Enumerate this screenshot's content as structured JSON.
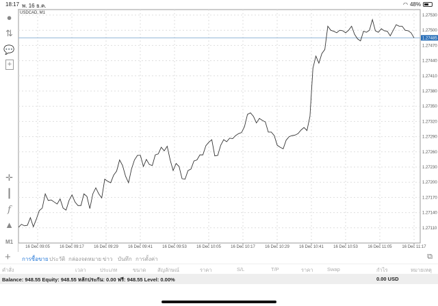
{
  "status_bar": {
    "time": "18:17",
    "date": "พ. 16 ธ.ค.",
    "battery": "48%",
    "battery_level": 0.48
  },
  "toolbar": {
    "icons": [
      "account-icon",
      "trade-icon",
      "chat-icon",
      "new-document-icon",
      "crosshair-icon",
      "indicators-icon",
      "function-icon",
      "objects-icon"
    ],
    "timeframe": "M1"
  },
  "chart": {
    "symbol_label": "USDCAD, M1",
    "current_price": "1.27485",
    "accent": "#2a6fb8"
  },
  "chart_data": {
    "type": "line",
    "title": "USDCAD, M1",
    "y_ticks": [
      "1.27530",
      "1.27500",
      "1.27470",
      "1.27440",
      "1.27410",
      "1.27380",
      "1.27350",
      "1.27320",
      "1.27290",
      "1.27260",
      "1.27230",
      "1.27200",
      "1.27170",
      "1.27140",
      "1.27110"
    ],
    "x_ticks": [
      "16 Dec 09:05",
      "16 Dec 09:17",
      "16 Dec 09:29",
      "16 Dec 09:41",
      "16 Dec 09:53",
      "16 Dec 10:05",
      "16 Dec 10:17",
      "16 Dec 10:29",
      "16 Dec 10:41",
      "16 Dec 10:53",
      "16 Dec 11:05",
      "16 Dec 11:17"
    ],
    "ylim": [
      1.271,
      1.2754
    ],
    "grid": true,
    "current_price": 1.27485,
    "values": [
      1.27111,
      1.27117,
      1.27114,
      1.27115,
      1.2713,
      1.27112,
      1.27127,
      1.27144,
      1.27149,
      1.27177,
      1.27164,
      1.27165,
      1.27161,
      1.27157,
      1.27167,
      1.27149,
      1.27145,
      1.27164,
      1.27175,
      1.27161,
      1.27154,
      1.27154,
      1.27177,
      1.27172,
      1.27148,
      1.27177,
      1.27189,
      1.27177,
      1.27169,
      1.27206,
      1.27202,
      1.27199,
      1.27214,
      1.27222,
      1.27244,
      1.27233,
      1.27212,
      1.27199,
      1.27226,
      1.27244,
      1.27253,
      1.27253,
      1.27231,
      1.27245,
      1.27235,
      1.27233,
      1.27254,
      1.27256,
      1.27269,
      1.27262,
      1.27271,
      1.27244,
      1.27223,
      1.27237,
      1.27231,
      1.27207,
      1.27206,
      1.27223,
      1.27226,
      1.27242,
      1.27244,
      1.27254,
      1.27254,
      1.27272,
      1.27279,
      1.27284,
      1.27252,
      1.27253,
      1.27273,
      1.27284,
      1.2728,
      1.27287,
      1.27286,
      1.27292,
      1.27296,
      1.27298,
      1.2731,
      1.27334,
      1.27337,
      1.2733,
      1.27317,
      1.27326,
      1.27322,
      1.27319,
      1.27299,
      1.27299,
      1.27292,
      1.27273,
      1.27269,
      1.27266,
      1.27283,
      1.2729,
      1.27292,
      1.27293,
      1.27296,
      1.27303,
      1.27308,
      1.27302,
      1.2733,
      1.27425,
      1.27449,
      1.27435,
      1.27454,
      1.27462,
      1.27508,
      1.275,
      1.27498,
      1.27495,
      1.275,
      1.27499,
      1.27495,
      1.275,
      1.27508,
      1.27492,
      1.27483,
      1.27479,
      1.27498,
      1.27496,
      1.275,
      1.27521,
      1.27499,
      1.27496,
      1.27503,
      1.27499,
      1.27498,
      1.27489,
      1.275,
      1.27511,
      1.27508,
      1.27508,
      1.275,
      1.27499,
      1.27495,
      1.27485
    ]
  },
  "tabs": {
    "items": [
      "การซื้อขาย",
      "ประวัติ",
      "กล่องจดหมาย",
      "ข่าว",
      "บันทึก",
      "การตั้งค่า"
    ]
  },
  "columns": [
    "คำสั่ง",
    "เวลา",
    "ประเภท",
    "ขนาด",
    "สัญลักษณ์",
    "ราคา",
    "S/L",
    "T/P",
    "ราคา",
    "Swap",
    "กำไร",
    "หมายเหตุ"
  ],
  "balance": {
    "text": "Balance: 948.55 Equity: 948.55 หลักประกัน: 0.00 ฟรี: 948.55 Level: 0.00%",
    "profit": "0.00  USD"
  }
}
